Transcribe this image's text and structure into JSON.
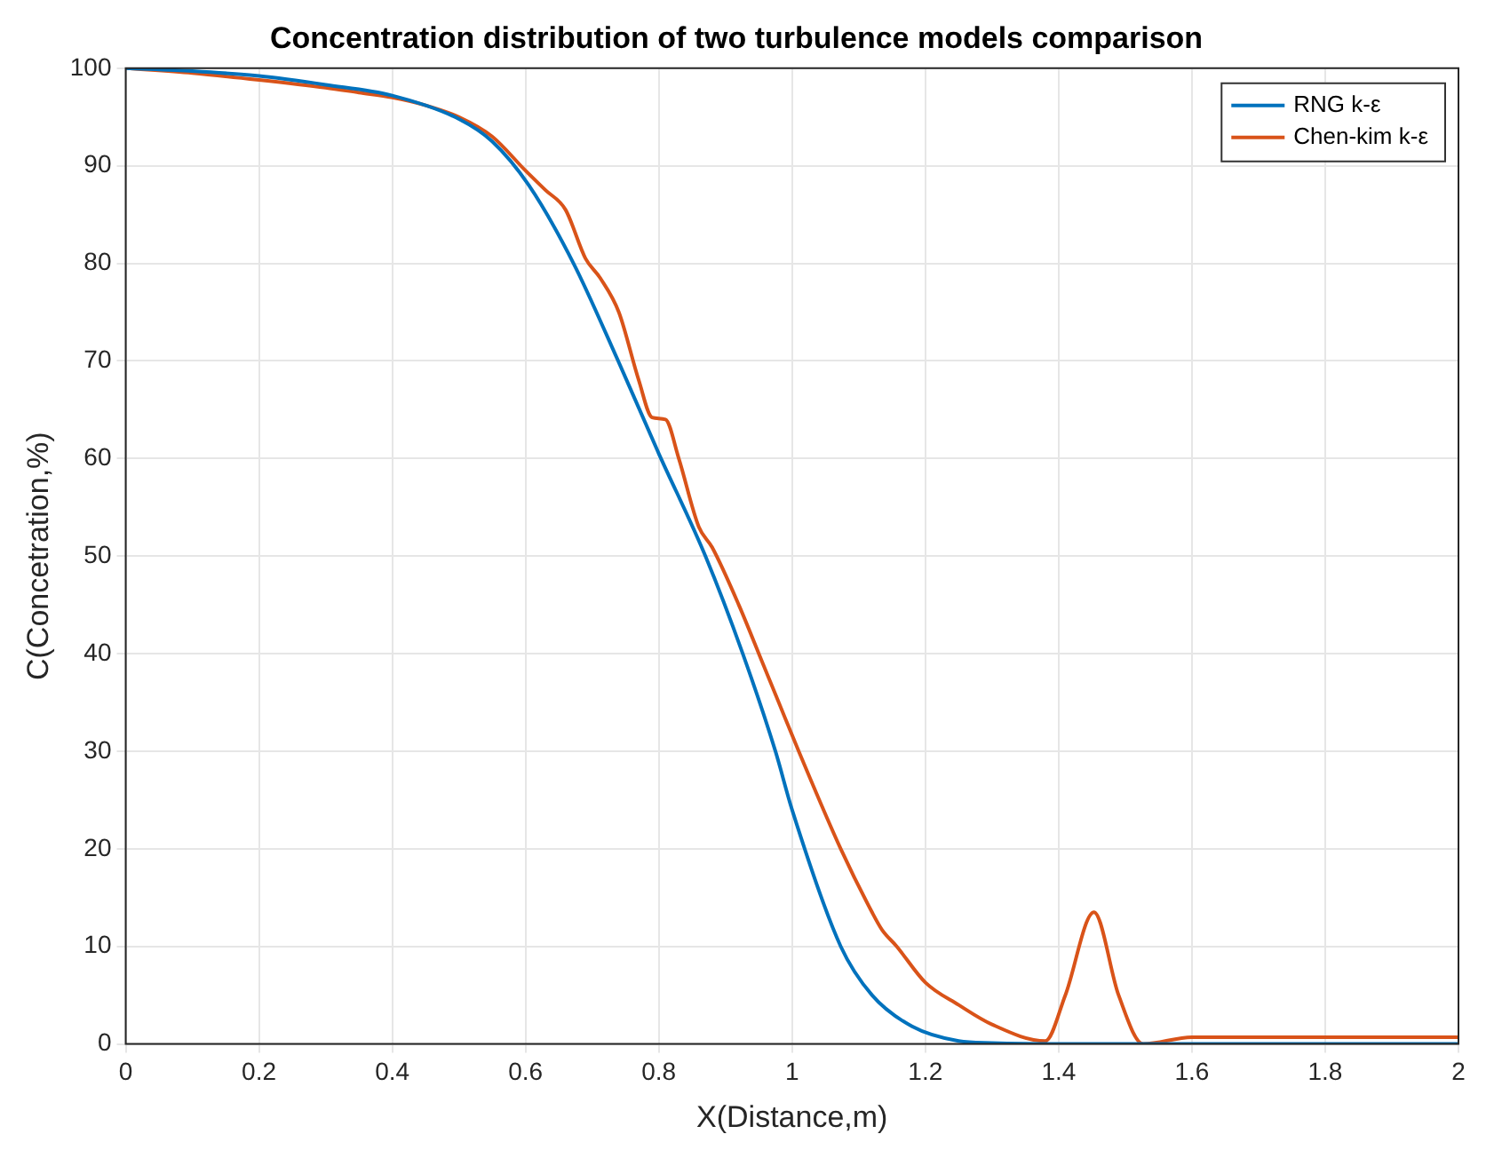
{
  "chart_data": {
    "type": "line",
    "title": "Concentration distribution of two turbulence models comparison",
    "xlabel": "X(Distance,m)",
    "ylabel": "C(Concetration,%)",
    "xlim": [
      0,
      2
    ],
    "xticks": [
      0,
      0.2,
      0.4,
      0.6,
      0.8,
      1,
      1.2,
      1.4,
      1.6,
      1.8,
      2
    ],
    "ylim": [
      0,
      100
    ],
    "yticks": [
      0,
      10,
      20,
      30,
      40,
      50,
      60,
      70,
      80,
      90,
      100
    ],
    "grid": true,
    "legend": "top right",
    "marker": "none",
    "line_style": "solid",
    "series": [
      {
        "name": "RNG k-ε",
        "color": "#0072bd",
        "x": [
          0,
          0.1,
          0.2,
          0.3,
          0.4,
          0.5,
          0.55,
          0.605,
          0.672,
          0.739,
          0.8,
          0.87,
          0.926,
          0.975,
          1.0,
          1.073,
          1.12,
          1.18,
          1.25,
          1.3,
          1.4,
          2
        ],
        "values": [
          100,
          99.7,
          99.2,
          98.3,
          97.2,
          94.8,
          92.5,
          88,
          80,
          70,
          60.5,
          50,
          40,
          30,
          24,
          10,
          5,
          1.8,
          0.3,
          0.1,
          0,
          0
        ]
      },
      {
        "name": "Chen-kim k-ε",
        "color": "#d95319",
        "x": [
          0,
          0.1,
          0.2,
          0.3,
          0.35,
          0.4,
          0.45,
          0.5,
          0.55,
          0.6,
          0.63,
          0.66,
          0.69,
          0.712,
          0.74,
          0.77,
          0.79,
          0.81,
          0.83,
          0.86,
          0.88,
          0.92,
          0.956,
          0.98,
          1.01,
          1.073,
          1.12,
          1.135,
          1.157,
          1.2,
          1.25,
          1.3,
          1.38,
          1.41,
          1.453,
          1.49,
          1.527,
          1.6,
          1.7,
          2
        ],
        "values": [
          100,
          99.5,
          98.8,
          98,
          97.5,
          97,
          96.2,
          95,
          93,
          89.5,
          87.5,
          85.5,
          80.5,
          78.5,
          75,
          68,
          64.2,
          64,
          60,
          53,
          50.9,
          45,
          39,
          35,
          30,
          20,
          13.5,
          11.7,
          10,
          6.3,
          4,
          2,
          0.3,
          5,
          13.5,
          5,
          0,
          0.7,
          0.7,
          0.7
        ]
      }
    ]
  }
}
